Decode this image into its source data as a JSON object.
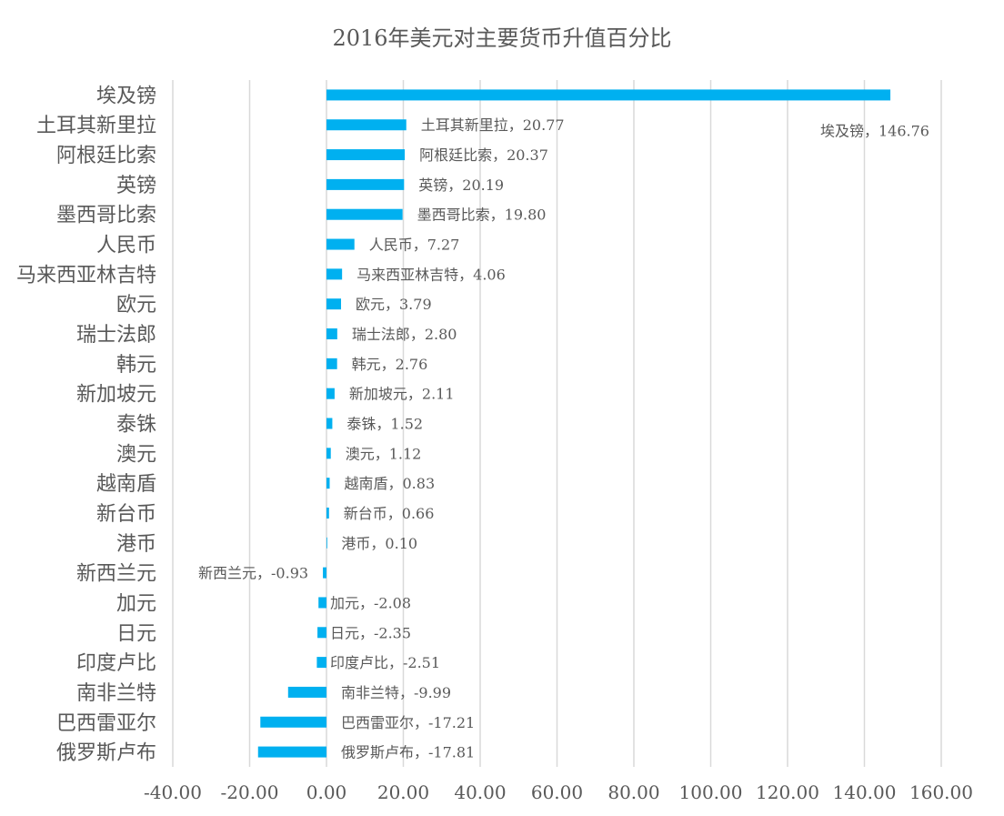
{
  "chart_data": {
    "type": "bar",
    "orientation": "horizontal",
    "title": "2016年美元对主要货币升值百分比",
    "xlabel": "",
    "ylabel": "",
    "xlim": [
      -40,
      160
    ],
    "x_ticks": [
      "-40.00",
      "-20.00",
      "0.00",
      "20.00",
      "40.00",
      "60.00",
      "80.00",
      "100.00",
      "120.00",
      "140.00",
      "160.00"
    ],
    "grid": "vertical",
    "bar_color": "#00B0F0",
    "data_labels": true,
    "categories": [
      "埃及镑",
      "土耳其新里拉",
      "阿根廷比索",
      "英镑",
      "墨西哥比索",
      "人民币",
      "马来西亚林吉特",
      "欧元",
      "瑞士法郎",
      "韩元",
      "新加坡元",
      "泰铢",
      "澳元",
      "越南盾",
      "新台币",
      "港币",
      "新西兰元",
      "加元",
      "日元",
      "印度卢比",
      "南非兰特",
      "巴西雷亚尔",
      "俄罗斯卢布"
    ],
    "values": [
      146.76,
      20.77,
      20.37,
      20.19,
      19.8,
      7.27,
      4.06,
      3.79,
      2.8,
      2.76,
      2.11,
      1.52,
      1.12,
      0.83,
      0.66,
      0.1,
      -0.93,
      -2.08,
      -2.35,
      -2.51,
      -9.99,
      -17.21,
      -17.81
    ],
    "value_labels": [
      "146.76",
      "20.77",
      "20.37",
      "20.19",
      "19.80",
      "7.27",
      "4.06",
      "3.79",
      "2.80",
      "2.76",
      "2.11",
      "1.52",
      "1.12",
      "0.83",
      "0.66",
      "0.10",
      "-0.93",
      "-2.08",
      "-2.35",
      "-2.51",
      "-9.99",
      "-17.21",
      "-17.81"
    ]
  }
}
